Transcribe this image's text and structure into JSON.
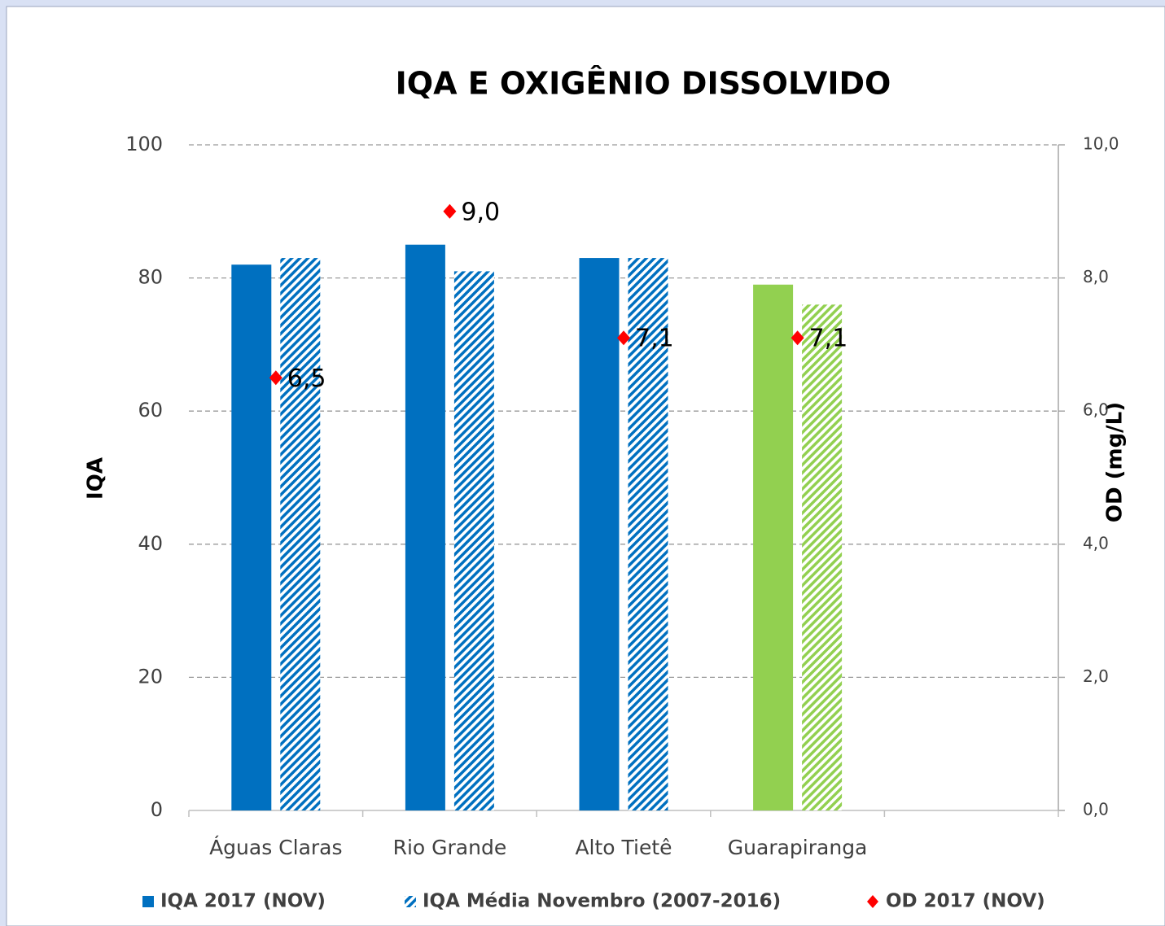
{
  "chart_data": {
    "type": "bar",
    "title": "IQA E OXIGÊNIO DISSOLVIDO",
    "y_label": "IQA",
    "y2_label": "OD (mg/L)",
    "categories": [
      "Águas Claras",
      "Rio Grande",
      "Alto Tietê",
      "Guarapiranga",
      null
    ],
    "series": [
      {
        "name": "IQA 2017 (NOV)",
        "color": "#0070c0",
        "colors": [
          "#0070c0",
          "#0070c0",
          "#0070c0",
          "#92d050",
          null
        ],
        "fill": "solid",
        "values": [
          82,
          85,
          83,
          79,
          null
        ]
      },
      {
        "name": "IQA Média Novembro (2007-2016)",
        "color": "#0070c0",
        "colors": [
          "#0070c0",
          "#0070c0",
          "#0070c0",
          "#92d050",
          null
        ],
        "fill": "hatch",
        "values": [
          83,
          81,
          83,
          76,
          null
        ]
      },
      {
        "name": "OD 2017 (NOV)",
        "type": "scatter",
        "axis": "y2",
        "color": "#ff0000",
        "values": [
          6.5,
          9.0,
          7.1,
          7.1,
          null
        ],
        "value_labels": [
          "6,5",
          "9,0",
          "7,1",
          "7,1",
          null
        ]
      }
    ],
    "ylim": [
      0,
      100
    ],
    "yticks": [
      0,
      20,
      40,
      60,
      80,
      100
    ],
    "y2lim": [
      0,
      10
    ],
    "y2ticks": [
      {
        "value": 0,
        "label": "0,0"
      },
      {
        "value": 2,
        "label": "2,0"
      },
      {
        "value": 4,
        "label": "4,0"
      },
      {
        "value": 6,
        "label": "6,0"
      },
      {
        "value": 8,
        "label": "8,0"
      },
      {
        "value": 10,
        "label": "10,0"
      }
    ],
    "grid": true,
    "legend": "bottom"
  }
}
